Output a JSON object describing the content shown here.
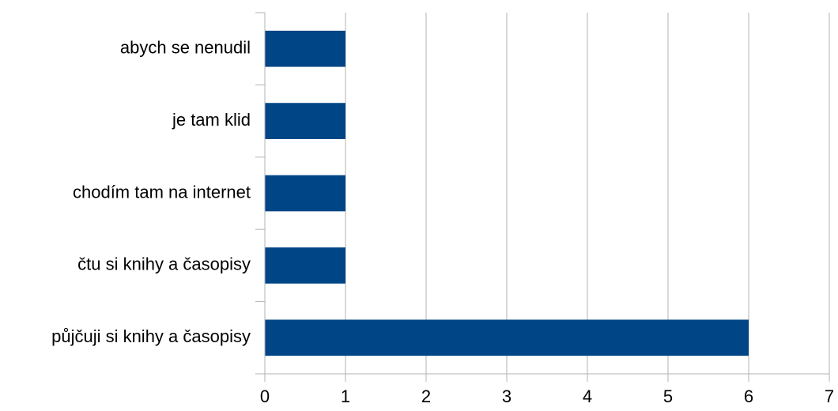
{
  "chart_data": {
    "type": "bar",
    "orientation": "horizontal",
    "categories": [
      "abych se nenudil",
      "je tam klid",
      "chodím tam na internet",
      "čtu si knihy a časopisy",
      "půjčuji si knihy a časopisy"
    ],
    "values": [
      1,
      1,
      1,
      1,
      6
    ],
    "title": "",
    "xlabel": "",
    "ylabel": "",
    "xlim": [
      0,
      7
    ],
    "x_ticks": [
      "0",
      "1",
      "2",
      "3",
      "4",
      "5",
      "6",
      "7"
    ],
    "grid": true,
    "legend": "none",
    "bar_color": "#004586",
    "grid_color": "#b3b3b3"
  }
}
